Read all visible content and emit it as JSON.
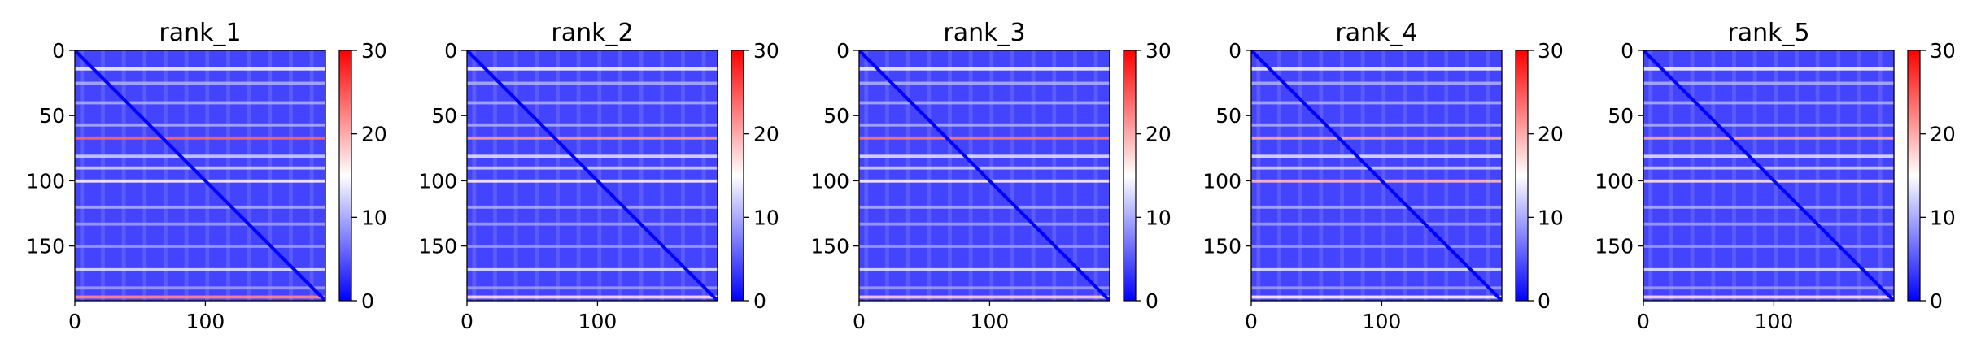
{
  "figure": {
    "description_free": true
  },
  "chart_data": [
    {
      "type": "heatmap",
      "title": "rank_1",
      "matrix_size": 192,
      "xlim": [
        0,
        192
      ],
      "ylim": [
        192,
        0
      ],
      "xticks": [
        0,
        100
      ],
      "xtick_labels": [
        "0",
        "100"
      ],
      "yticks": [
        0,
        50,
        100,
        150
      ],
      "ytick_labels": [
        "0",
        "50",
        "100",
        "150"
      ],
      "colorbar": {
        "min": 0,
        "max": 30,
        "ticks": [
          0,
          10,
          20,
          30
        ],
        "tick_labels": [
          "0",
          "10",
          "20",
          "30"
        ],
        "colormap": "bwr"
      },
      "row_bands": [
        {
          "row": 14,
          "value": 14
        },
        {
          "row": 25,
          "value": 10
        },
        {
          "row": 40,
          "value": 10
        },
        {
          "row": 57,
          "value": 10
        },
        {
          "row": 67,
          "value": 24
        },
        {
          "row": 81,
          "value": 12
        },
        {
          "row": 90,
          "value": 12
        },
        {
          "row": 100,
          "value": 16
        },
        {
          "row": 120,
          "value": 10
        },
        {
          "row": 133,
          "value": 9
        },
        {
          "row": 150,
          "value": 9
        },
        {
          "row": 168,
          "value": 13
        },
        {
          "row": 182,
          "value": 9
        },
        {
          "row": 189,
          "value": 22
        }
      ],
      "diagonal_value": 0
    },
    {
      "type": "heatmap",
      "title": "rank_2",
      "matrix_size": 192,
      "xlim": [
        0,
        192
      ],
      "ylim": [
        192,
        0
      ],
      "xticks": [
        0,
        100
      ],
      "xtick_labels": [
        "0",
        "100"
      ],
      "yticks": [
        0,
        50,
        100,
        150
      ],
      "ytick_labels": [
        "0",
        "50",
        "100",
        "150"
      ],
      "colorbar": {
        "min": 0,
        "max": 30,
        "ticks": [
          0,
          10,
          20,
          30
        ],
        "tick_labels": [
          "0",
          "10",
          "20",
          "30"
        ],
        "colormap": "bwr"
      },
      "row_bands": [
        {
          "row": 14,
          "value": 14
        },
        {
          "row": 25,
          "value": 10
        },
        {
          "row": 40,
          "value": 10
        },
        {
          "row": 57,
          "value": 10
        },
        {
          "row": 67,
          "value": 21
        },
        {
          "row": 81,
          "value": 13
        },
        {
          "row": 90,
          "value": 12
        },
        {
          "row": 100,
          "value": 16
        },
        {
          "row": 120,
          "value": 10
        },
        {
          "row": 133,
          "value": 9
        },
        {
          "row": 150,
          "value": 9
        },
        {
          "row": 168,
          "value": 13
        },
        {
          "row": 182,
          "value": 9
        },
        {
          "row": 189,
          "value": 17
        }
      ],
      "diagonal_value": 0
    },
    {
      "type": "heatmap",
      "title": "rank_3",
      "matrix_size": 192,
      "xlim": [
        0,
        192
      ],
      "ylim": [
        192,
        0
      ],
      "xticks": [
        0,
        100
      ],
      "xtick_labels": [
        "0",
        "100"
      ],
      "yticks": [
        0,
        50,
        100,
        150
      ],
      "ytick_labels": [
        "0",
        "50",
        "100",
        "150"
      ],
      "colorbar": {
        "min": 0,
        "max": 30,
        "ticks": [
          0,
          10,
          20,
          30
        ],
        "tick_labels": [
          "0",
          "10",
          "20",
          "30"
        ],
        "colormap": "bwr"
      },
      "row_bands": [
        {
          "row": 14,
          "value": 14
        },
        {
          "row": 25,
          "value": 10
        },
        {
          "row": 40,
          "value": 10
        },
        {
          "row": 57,
          "value": 10
        },
        {
          "row": 67,
          "value": 23
        },
        {
          "row": 81,
          "value": 13
        },
        {
          "row": 90,
          "value": 12
        },
        {
          "row": 100,
          "value": 16
        },
        {
          "row": 120,
          "value": 10
        },
        {
          "row": 133,
          "value": 9
        },
        {
          "row": 150,
          "value": 9
        },
        {
          "row": 168,
          "value": 13
        },
        {
          "row": 182,
          "value": 9
        },
        {
          "row": 189,
          "value": 18
        }
      ],
      "diagonal_value": 0
    },
    {
      "type": "heatmap",
      "title": "rank_4",
      "matrix_size": 192,
      "xlim": [
        0,
        192
      ],
      "ylim": [
        192,
        0
      ],
      "xticks": [
        0,
        100
      ],
      "xtick_labels": [
        "0",
        "100"
      ],
      "yticks": [
        0,
        50,
        100,
        150
      ],
      "ytick_labels": [
        "0",
        "50",
        "100",
        "150"
      ],
      "colorbar": {
        "min": 0,
        "max": 30,
        "ticks": [
          0,
          10,
          20,
          30
        ],
        "tick_labels": [
          "0",
          "10",
          "20",
          "30"
        ],
        "colormap": "bwr"
      },
      "row_bands": [
        {
          "row": 14,
          "value": 14
        },
        {
          "row": 25,
          "value": 10
        },
        {
          "row": 40,
          "value": 10
        },
        {
          "row": 57,
          "value": 10
        },
        {
          "row": 67,
          "value": 20
        },
        {
          "row": 81,
          "value": 13
        },
        {
          "row": 90,
          "value": 12
        },
        {
          "row": 100,
          "value": 19
        },
        {
          "row": 120,
          "value": 10
        },
        {
          "row": 133,
          "value": 9
        },
        {
          "row": 150,
          "value": 9
        },
        {
          "row": 168,
          "value": 13
        },
        {
          "row": 182,
          "value": 9
        },
        {
          "row": 189,
          "value": 16
        }
      ],
      "diagonal_value": 0
    },
    {
      "type": "heatmap",
      "title": "rank_5",
      "matrix_size": 192,
      "xlim": [
        0,
        192
      ],
      "ylim": [
        192,
        0
      ],
      "xticks": [
        0,
        100
      ],
      "xtick_labels": [
        "0",
        "100"
      ],
      "yticks": [
        0,
        50,
        100,
        150
      ],
      "ytick_labels": [
        "0",
        "50",
        "100",
        "150"
      ],
      "colorbar": {
        "min": 0,
        "max": 30,
        "ticks": [
          0,
          10,
          20,
          30
        ],
        "tick_labels": [
          "0",
          "10",
          "20",
          "30"
        ],
        "colormap": "bwr"
      },
      "row_bands": [
        {
          "row": 14,
          "value": 14
        },
        {
          "row": 25,
          "value": 10
        },
        {
          "row": 40,
          "value": 10
        },
        {
          "row": 57,
          "value": 10
        },
        {
          "row": 67,
          "value": 20
        },
        {
          "row": 81,
          "value": 13
        },
        {
          "row": 90,
          "value": 12
        },
        {
          "row": 100,
          "value": 17
        },
        {
          "row": 120,
          "value": 10
        },
        {
          "row": 133,
          "value": 9
        },
        {
          "row": 150,
          "value": 9
        },
        {
          "row": 168,
          "value": 13
        },
        {
          "row": 182,
          "value": 9
        },
        {
          "row": 189,
          "value": 17
        }
      ],
      "diagonal_value": 0
    }
  ]
}
